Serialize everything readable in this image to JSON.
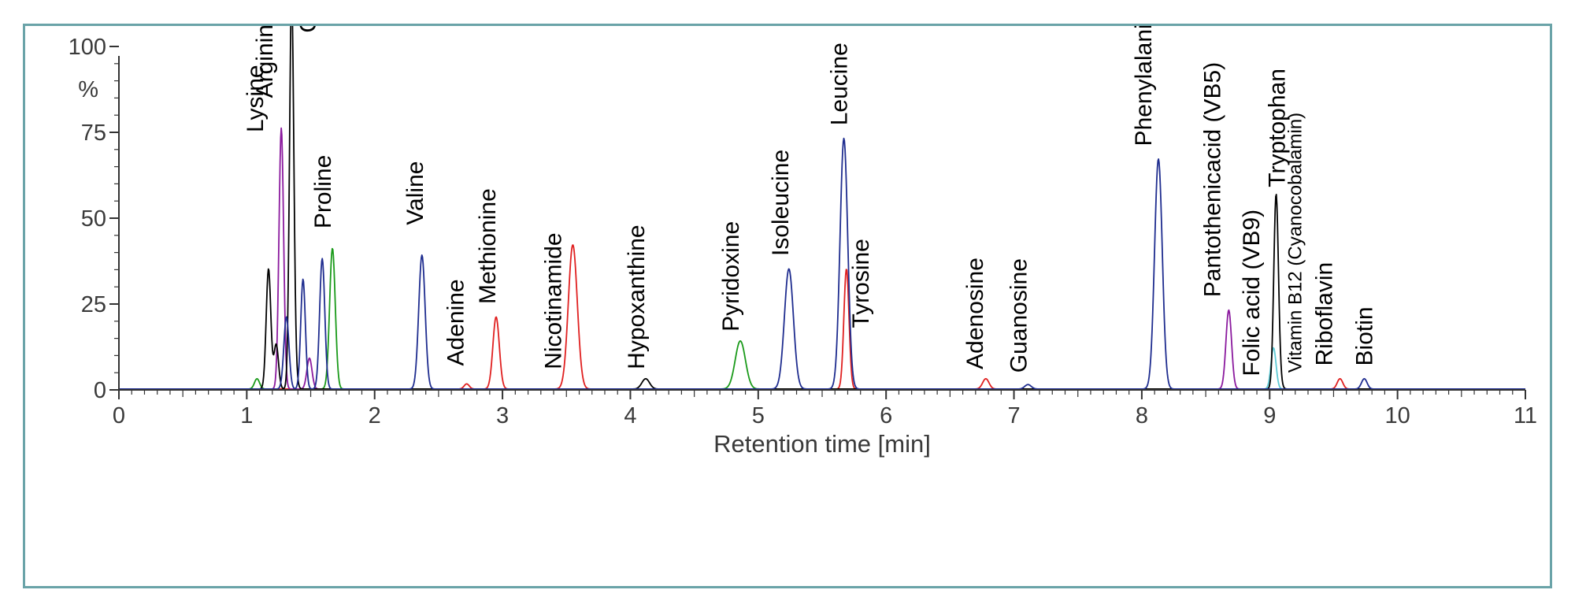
{
  "chart_data": {
    "type": "line",
    "title": "",
    "xlabel": "Retention time [min]",
    "ylabel": "%",
    "xlim": [
      0,
      11
    ],
    "ylim": [
      0,
      100
    ],
    "x_ticks": [
      "0",
      "1",
      "2",
      "3",
      "4",
      "5",
      "6",
      "7",
      "8",
      "9",
      "10",
      "11"
    ],
    "y_ticks": [
      "0",
      "25",
      "50",
      "75",
      "100"
    ],
    "grid": false,
    "legend": "none",
    "colors": {
      "black": "#000000",
      "purple": "#8b1a9e",
      "blue": "#1f2d8f",
      "green": "#1a9a1a",
      "red": "#e02020",
      "cyan": "#5ecad6",
      "axis": "#333333",
      "frame": "#6aa3a8"
    },
    "peaks": [
      {
        "name": "Lysine",
        "rt": 1.17,
        "height": 35,
        "width": 0.018,
        "color": "black"
      },
      {
        "name": "",
        "rt": 1.08,
        "height": 3,
        "width": 0.02,
        "color": "green"
      },
      {
        "name": "",
        "rt": 1.23,
        "height": 13,
        "width": 0.018,
        "color": "black"
      },
      {
        "name": "Arginine",
        "rt": 1.27,
        "height": 76,
        "width": 0.018,
        "color": "purple"
      },
      {
        "name": "",
        "rt": 1.31,
        "height": 21,
        "width": 0.02,
        "color": "blue"
      },
      {
        "name": "Choline",
        "rt": 1.35,
        "height": 100,
        "width": 0.016,
        "color": "black"
      },
      {
        "name": "",
        "rt": 1.36,
        "height": 18,
        "width": 0.02,
        "color": "black"
      },
      {
        "name": "",
        "rt": 1.44,
        "height": 32,
        "width": 0.018,
        "color": "blue"
      },
      {
        "name": "",
        "rt": 1.49,
        "height": 9,
        "width": 0.02,
        "color": "purple"
      },
      {
        "name": "",
        "rt": 1.59,
        "height": 38,
        "width": 0.02,
        "color": "blue"
      },
      {
        "name": "Proline",
        "rt": 1.67,
        "height": 41,
        "width": 0.022,
        "color": "green"
      },
      {
        "name": "Valine",
        "rt": 2.37,
        "height": 39,
        "width": 0.025,
        "color": "blue"
      },
      {
        "name": "Adenine",
        "rt": 2.72,
        "height": 1.5,
        "width": 0.02,
        "color": "red"
      },
      {
        "name": "Methionine",
        "rt": 2.95,
        "height": 21,
        "width": 0.025,
        "color": "red"
      },
      {
        "name": "Nicotinamide",
        "rt": 3.55,
        "height": 42,
        "width": 0.035,
        "color": "red"
      },
      {
        "name": "Hypoxanthine",
        "rt": 4.12,
        "height": 3,
        "width": 0.03,
        "color": "black"
      },
      {
        "name": "Pyridoxine",
        "rt": 4.86,
        "height": 14,
        "width": 0.04,
        "color": "green"
      },
      {
        "name": "Isoleucine",
        "rt": 5.24,
        "height": 35,
        "width": 0.035,
        "color": "blue"
      },
      {
        "name": "Leucine",
        "rt": 5.67,
        "height": 73,
        "width": 0.03,
        "color": "blue"
      },
      {
        "name": "Tyrosine",
        "rt": 5.69,
        "height": 35,
        "width": 0.02,
        "color": "red"
      },
      {
        "name": "Adenosine",
        "rt": 6.78,
        "height": 3,
        "width": 0.025,
        "color": "red"
      },
      {
        "name": "Guanosine",
        "rt": 7.11,
        "height": 1.3,
        "width": 0.025,
        "color": "blue"
      },
      {
        "name": "Phenylalanine",
        "rt": 8.13,
        "height": 67,
        "width": 0.03,
        "color": "blue"
      },
      {
        "name": "Pantothenicacid (VB5)",
        "rt": 8.68,
        "height": 23,
        "width": 0.022,
        "color": "purple"
      },
      {
        "name": "Folic acid (VB9)",
        "rt": 9.03,
        "height": 12,
        "width": 0.02,
        "color": "cyan"
      },
      {
        "name": "Tryptophan",
        "rt": 9.05,
        "height": 55,
        "width": 0.018,
        "color": "black"
      },
      {
        "name": "Vitamin B12 (Cyanocobalamin)",
        "rt": 9.07,
        "height": 3,
        "width": 0.02,
        "color": "black"
      },
      {
        "name": "Riboflavin",
        "rt": 9.55,
        "height": 3,
        "width": 0.022,
        "color": "red"
      },
      {
        "name": "Biotin",
        "rt": 9.74,
        "height": 3,
        "width": 0.022,
        "color": "blue"
      }
    ]
  }
}
